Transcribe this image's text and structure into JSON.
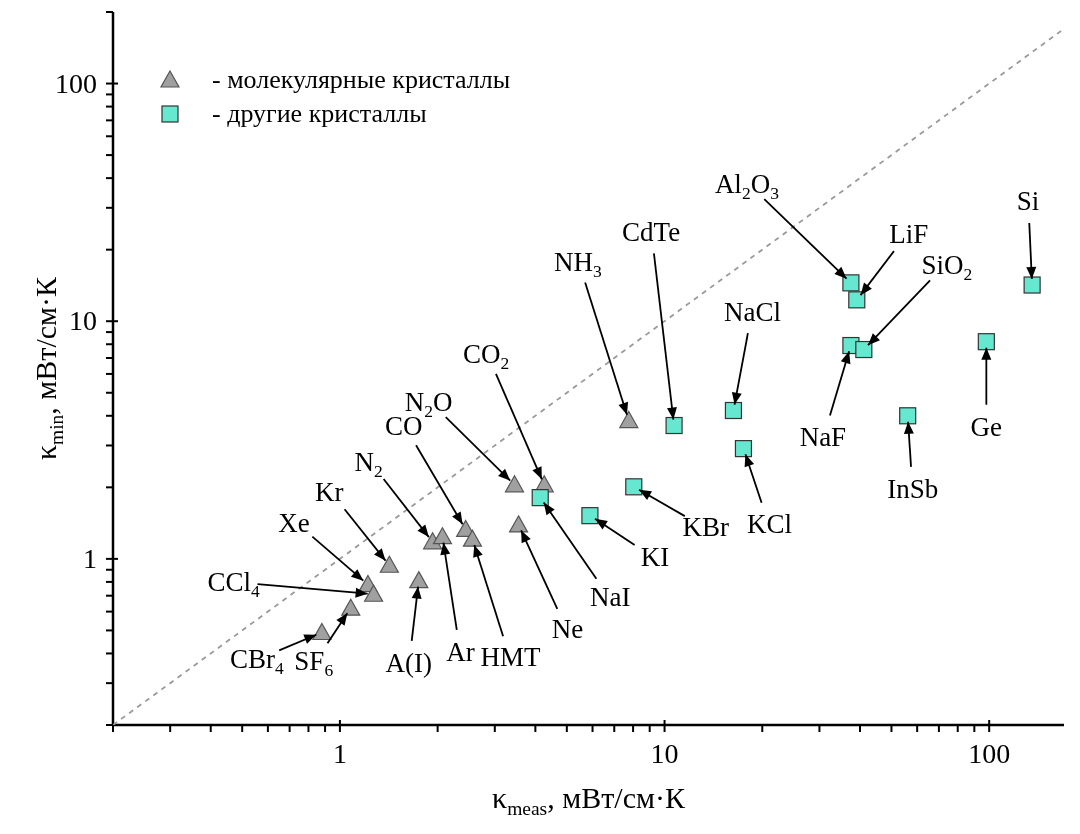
{
  "chart_data": {
    "type": "scatter",
    "xlabel": "κ$_{meas}$, мВт/см·К",
    "ylabel": "κ$_{min}$, мВт/см·К",
    "log": "xy",
    "xlim": [
      0.2,
      170
    ],
    "ylim": [
      0.2,
      200
    ],
    "xticks": [
      {
        "value": 0.2,
        "label": null
      },
      {
        "value": 0.3,
        "label": null
      },
      {
        "value": 0.4,
        "label": null
      },
      {
        "value": 0.5,
        "label": null
      },
      {
        "value": 0.6,
        "label": null
      },
      {
        "value": 0.7,
        "label": null
      },
      {
        "value": 0.8,
        "label": null
      },
      {
        "value": 0.9,
        "label": null
      },
      1,
      {
        "value": 2,
        "label": null
      },
      {
        "value": 3,
        "label": null
      },
      {
        "value": 4,
        "label": null
      },
      {
        "value": 5,
        "label": null
      },
      {
        "value": 6,
        "label": null
      },
      {
        "value": 7,
        "label": null
      },
      {
        "value": 8,
        "label": null
      },
      {
        "value": 9,
        "label": null
      },
      10,
      {
        "value": 20,
        "label": null
      },
      {
        "value": 30,
        "label": null
      },
      {
        "value": 40,
        "label": null
      },
      {
        "value": 50,
        "label": null
      },
      {
        "value": 60,
        "label": null
      },
      {
        "value": 70,
        "label": null
      },
      {
        "value": 80,
        "label": null
      },
      {
        "value": 90,
        "label": null
      },
      100
    ],
    "yticks": [
      {
        "value": 0.2,
        "label": null
      },
      {
        "value": 0.3,
        "label": null
      },
      {
        "value": 0.4,
        "label": null
      },
      {
        "value": 0.5,
        "label": null
      },
      {
        "value": 0.6,
        "label": null
      },
      {
        "value": 0.7,
        "label": null
      },
      {
        "value": 0.8,
        "label": null
      },
      {
        "value": 0.9,
        "label": null
      },
      1,
      {
        "value": 2,
        "label": null
      },
      {
        "value": 3,
        "label": null
      },
      {
        "value": 4,
        "label": null
      },
      {
        "value": 5,
        "label": null
      },
      {
        "value": 6,
        "label": null
      },
      {
        "value": 7,
        "label": null
      },
      {
        "value": 8,
        "label": null
      },
      {
        "value": 9,
        "label": null
      },
      10,
      {
        "value": 20,
        "label": null
      },
      {
        "value": 30,
        "label": null
      },
      {
        "value": 40,
        "label": null
      },
      {
        "value": 50,
        "label": null
      },
      {
        "value": 60,
        "label": null
      },
      {
        "value": 70,
        "label": null
      },
      {
        "value": 80,
        "label": null
      },
      {
        "value": 90,
        "label": null
      },
      100,
      {
        "value": 200,
        "label": null
      }
    ],
    "legend": "top left",
    "series": [
      {
        "name": "- молекулярные кристаллы",
        "color": "#a0a0a0",
        "marker": "triangle",
        "x": [
          0.88,
          1.08,
          1.22,
          1.27,
          1.42,
          1.75,
          1.93,
          2.07,
          2.44,
          2.56,
          3.45,
          3.55,
          4.26,
          7.76
        ],
        "values": [
          0.49,
          0.62,
          0.78,
          0.71,
          0.94,
          0.81,
          1.18,
          1.24,
          1.33,
          1.21,
          2.05,
          1.39,
          2.05,
          3.82
        ]
      },
      {
        "name": "- другие кристаллы",
        "color": "#66e8d0",
        "marker": "square",
        "x": [
          4.14,
          5.89,
          8.04,
          10.7,
          16.3,
          17.5,
          37.5,
          39.1,
          37.5,
          41.1,
          56.1,
          98,
          135.6
        ],
        "values": [
          1.81,
          1.52,
          2.01,
          3.64,
          4.21,
          2.91,
          14.5,
          12.3,
          7.9,
          7.6,
          4.0,
          8.2,
          14.2
        ]
      },
      {
        "type": "line",
        "color": "#9a9a9a",
        "line_style": "dashed",
        "marker": "none",
        "x": [
          0.2,
          170
        ],
        "values": [
          0.2,
          170
        ]
      }
    ],
    "annotations": [
      {
        "text": "CBr$_{4}$",
        "x": 0.88,
        "y": 0.49
      },
      {
        "text": "SF$_{6}$",
        "x": 1.08,
        "y": 0.62
      },
      {
        "text": "CCl$_{4}$",
        "x": 1.27,
        "y": 0.71
      },
      {
        "text": "Xe",
        "x": 1.22,
        "y": 0.78
      },
      {
        "text": "Kr",
        "x": 1.42,
        "y": 0.94
      },
      {
        "text": "A(I)",
        "x": 1.75,
        "y": 0.81
      },
      {
        "text": "N$_{2}$",
        "x": 1.93,
        "y": 1.18
      },
      {
        "text": "Ar",
        "x": 2.07,
        "y": 1.24
      },
      {
        "text": "CO",
        "x": 2.44,
        "y": 1.33
      },
      {
        "text": "HMT",
        "x": 2.56,
        "y": 1.21
      },
      {
        "text": "N$_{2}$O",
        "x": 3.45,
        "y": 2.05
      },
      {
        "text": "Ne",
        "x": 3.55,
        "y": 1.39
      },
      {
        "text": "CO$_{2}$",
        "x": 4.26,
        "y": 2.05
      },
      {
        "text": "NH$_{3}$",
        "x": 7.76,
        "y": 3.82
      },
      {
        "text": "NaI",
        "x": 4.14,
        "y": 1.81
      },
      {
        "text": "KI",
        "x": 5.89,
        "y": 1.52
      },
      {
        "text": "KBr",
        "x": 8.04,
        "y": 2.01
      },
      {
        "text": "CdTe",
        "x": 10.7,
        "y": 3.64
      },
      {
        "text": "NaCl",
        "x": 16.3,
        "y": 4.21
      },
      {
        "text": "KCl",
        "x": 17.5,
        "y": 2.91
      },
      {
        "text": "Al$_{2}$O$_{3}$",
        "x": 37.5,
        "y": 14.5
      },
      {
        "text": "LiF",
        "x": 39.1,
        "y": 12.3
      },
      {
        "text": "NaF",
        "x": 37.5,
        "y": 7.9
      },
      {
        "text": "SiO$_{2}$",
        "x": 41.1,
        "y": 7.6
      },
      {
        "text": "InSb",
        "x": 56.1,
        "y": 4.0
      },
      {
        "text": "Ge",
        "x": 98,
        "y": 8.2
      },
      {
        "text": "Si",
        "x": 135.6,
        "y": 14.2
      }
    ]
  }
}
